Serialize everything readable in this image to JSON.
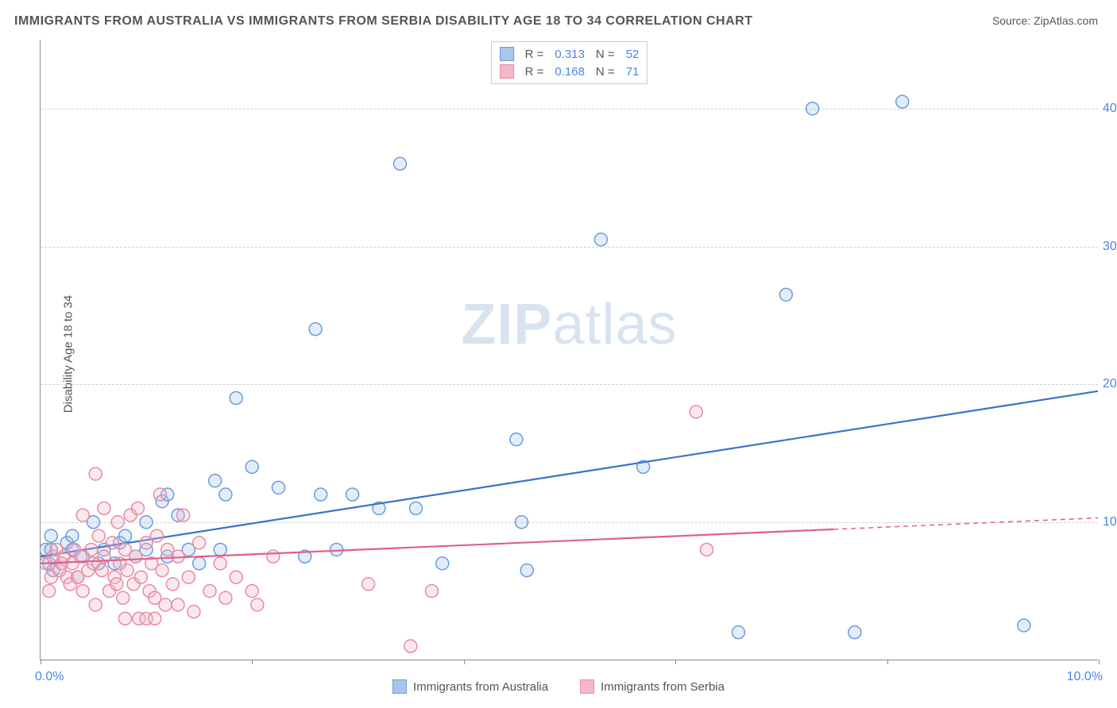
{
  "title": "IMMIGRANTS FROM AUSTRALIA VS IMMIGRANTS FROM SERBIA DISABILITY AGE 18 TO 34 CORRELATION CHART",
  "source_label": "Source: ",
  "source_name": "ZipAtlas.com",
  "y_axis_label": "Disability Age 18 to 34",
  "watermark_bold": "ZIP",
  "watermark_light": "atlas",
  "chart": {
    "type": "scatter",
    "xlim": [
      0.0,
      10.0
    ],
    "ylim": [
      0.0,
      45.0
    ],
    "x_ticks": [
      0.0,
      2.0,
      4.0,
      6.0,
      8.0,
      10.0
    ],
    "x_tick_labels_shown": {
      "0.0": "0.0%",
      "10.0": "10.0%"
    },
    "y_ticks": [
      10.0,
      20.0,
      30.0,
      40.0
    ],
    "y_tick_labels": {
      "10.0": "10.0%",
      "20.0": "20.0%",
      "30.0": "30.0%",
      "40.0": "40.0%"
    },
    "background_color": "#ffffff",
    "grid_color": "#d0d0d0",
    "axis_color": "#888888",
    "marker_radius": 8,
    "marker_fill_opacity": 0.32,
    "series": [
      {
        "name": "Immigrants from Australia",
        "legend_label": "Immigrants from Australia",
        "color_fill": "#a8c5ec",
        "color_stroke": "#6a9cdb",
        "trend_color": "#3b72cc",
        "r_value": "0.313",
        "n_value": "52",
        "trend": {
          "x1": 0.0,
          "y1": 7.5,
          "x2": 10.0,
          "y2": 19.5
        },
        "trend_dash_from_x": null,
        "points": [
          {
            "x": 0.05,
            "y": 8.0
          },
          {
            "x": 0.08,
            "y": 7.0
          },
          {
            "x": 0.1,
            "y": 8.0
          },
          {
            "x": 0.1,
            "y": 9.0
          },
          {
            "x": 0.12,
            "y": 6.5
          },
          {
            "x": 0.2,
            "y": 7.0
          },
          {
            "x": 0.25,
            "y": 8.5
          },
          {
            "x": 0.3,
            "y": 8.0
          },
          {
            "x": 0.3,
            "y": 9.0
          },
          {
            "x": 0.35,
            "y": 6.0
          },
          {
            "x": 0.4,
            "y": 7.5
          },
          {
            "x": 0.5,
            "y": 10.0
          },
          {
            "x": 0.55,
            "y": 7.0
          },
          {
            "x": 0.6,
            "y": 8.0
          },
          {
            "x": 0.7,
            "y": 7.0
          },
          {
            "x": 0.75,
            "y": 8.5
          },
          {
            "x": 0.8,
            "y": 9.0
          },
          {
            "x": 0.9,
            "y": 7.5
          },
          {
            "x": 1.0,
            "y": 10.0
          },
          {
            "x": 1.0,
            "y": 8.0
          },
          {
            "x": 1.15,
            "y": 11.5
          },
          {
            "x": 1.2,
            "y": 7.5
          },
          {
            "x": 1.2,
            "y": 12.0
          },
          {
            "x": 1.3,
            "y": 10.5
          },
          {
            "x": 1.4,
            "y": 8.0
          },
          {
            "x": 1.5,
            "y": 7.0
          },
          {
            "x": 1.65,
            "y": 13.0
          },
          {
            "x": 1.7,
            "y": 8.0
          },
          {
            "x": 1.75,
            "y": 12.0
          },
          {
            "x": 1.85,
            "y": 19.0
          },
          {
            "x": 2.0,
            "y": 14.0
          },
          {
            "x": 2.25,
            "y": 12.5
          },
          {
            "x": 2.5,
            "y": 7.5
          },
          {
            "x": 2.6,
            "y": 24.0
          },
          {
            "x": 2.65,
            "y": 12.0
          },
          {
            "x": 2.8,
            "y": 8.0
          },
          {
            "x": 2.95,
            "y": 12.0
          },
          {
            "x": 3.2,
            "y": 11.0
          },
          {
            "x": 3.4,
            "y": 36.0
          },
          {
            "x": 3.55,
            "y": 11.0
          },
          {
            "x": 3.8,
            "y": 7.0
          },
          {
            "x": 4.5,
            "y": 16.0
          },
          {
            "x": 4.55,
            "y": 10.0
          },
          {
            "x": 4.6,
            "y": 6.5
          },
          {
            "x": 5.3,
            "y": 30.5
          },
          {
            "x": 5.7,
            "y": 14.0
          },
          {
            "x": 6.6,
            "y": 2.0
          },
          {
            "x": 7.05,
            "y": 26.5
          },
          {
            "x": 7.3,
            "y": 40.0
          },
          {
            "x": 7.7,
            "y": 2.0
          },
          {
            "x": 8.15,
            "y": 40.5
          },
          {
            "x": 9.3,
            "y": 2.5
          }
        ]
      },
      {
        "name": "Immigrants from Serbia",
        "legend_label": "Immigrants from Serbia",
        "color_fill": "#f3b9c8",
        "color_stroke": "#e88aa3",
        "trend_color": "#e06088",
        "r_value": "0.168",
        "n_value": "71",
        "trend": {
          "x1": 0.0,
          "y1": 7.0,
          "x2": 10.0,
          "y2": 10.3
        },
        "trend_dash_from_x": 7.5,
        "points": [
          {
            "x": 0.05,
            "y": 7.0
          },
          {
            "x": 0.08,
            "y": 5.0
          },
          {
            "x": 0.1,
            "y": 6.0
          },
          {
            "x": 0.12,
            "y": 7.5
          },
          {
            "x": 0.15,
            "y": 8.0
          },
          {
            "x": 0.18,
            "y": 6.5
          },
          {
            "x": 0.2,
            "y": 7.0
          },
          {
            "x": 0.22,
            "y": 7.5
          },
          {
            "x": 0.25,
            "y": 6.0
          },
          {
            "x": 0.28,
            "y": 5.5
          },
          {
            "x": 0.3,
            "y": 7.0
          },
          {
            "x": 0.32,
            "y": 8.0
          },
          {
            "x": 0.35,
            "y": 6.0
          },
          {
            "x": 0.38,
            "y": 7.5
          },
          {
            "x": 0.4,
            "y": 5.0
          },
          {
            "x": 0.4,
            "y": 10.5
          },
          {
            "x": 0.45,
            "y": 6.5
          },
          {
            "x": 0.48,
            "y": 8.0
          },
          {
            "x": 0.5,
            "y": 7.0
          },
          {
            "x": 0.52,
            "y": 4.0
          },
          {
            "x": 0.52,
            "y": 13.5
          },
          {
            "x": 0.55,
            "y": 9.0
          },
          {
            "x": 0.58,
            "y": 6.5
          },
          {
            "x": 0.6,
            "y": 7.5
          },
          {
            "x": 0.6,
            "y": 11.0
          },
          {
            "x": 0.65,
            "y": 5.0
          },
          {
            "x": 0.68,
            "y": 8.5
          },
          {
            "x": 0.7,
            "y": 6.0
          },
          {
            "x": 0.72,
            "y": 5.5
          },
          {
            "x": 0.73,
            "y": 10.0
          },
          {
            "x": 0.75,
            "y": 7.0
          },
          {
            "x": 0.78,
            "y": 4.5
          },
          {
            "x": 0.8,
            "y": 8.0
          },
          {
            "x": 0.8,
            "y": 3.0
          },
          {
            "x": 0.82,
            "y": 6.5
          },
          {
            "x": 0.85,
            "y": 10.5
          },
          {
            "x": 0.88,
            "y": 5.5
          },
          {
            "x": 0.9,
            "y": 7.5
          },
          {
            "x": 0.92,
            "y": 11.0
          },
          {
            "x": 0.93,
            "y": 3.0
          },
          {
            "x": 0.95,
            "y": 6.0
          },
          {
            "x": 1.0,
            "y": 8.5
          },
          {
            "x": 1.0,
            "y": 3.0
          },
          {
            "x": 1.03,
            "y": 5.0
          },
          {
            "x": 1.05,
            "y": 7.0
          },
          {
            "x": 1.08,
            "y": 4.5
          },
          {
            "x": 1.08,
            "y": 3.0
          },
          {
            "x": 1.1,
            "y": 9.0
          },
          {
            "x": 1.13,
            "y": 12.0
          },
          {
            "x": 1.15,
            "y": 6.5
          },
          {
            "x": 1.18,
            "y": 4.0
          },
          {
            "x": 1.2,
            "y": 8.0
          },
          {
            "x": 1.25,
            "y": 5.5
          },
          {
            "x": 1.3,
            "y": 7.5
          },
          {
            "x": 1.3,
            "y": 4.0
          },
          {
            "x": 1.35,
            "y": 10.5
          },
          {
            "x": 1.4,
            "y": 6.0
          },
          {
            "x": 1.45,
            "y": 3.5
          },
          {
            "x": 1.5,
            "y": 8.5
          },
          {
            "x": 1.6,
            "y": 5.0
          },
          {
            "x": 1.7,
            "y": 7.0
          },
          {
            "x": 1.75,
            "y": 4.5
          },
          {
            "x": 1.85,
            "y": 6.0
          },
          {
            "x": 2.0,
            "y": 5.0
          },
          {
            "x": 2.05,
            "y": 4.0
          },
          {
            "x": 2.2,
            "y": 7.5
          },
          {
            "x": 3.1,
            "y": 5.5
          },
          {
            "x": 3.5,
            "y": 1.0
          },
          {
            "x": 3.7,
            "y": 5.0
          },
          {
            "x": 6.2,
            "y": 18.0
          },
          {
            "x": 6.3,
            "y": 8.0
          }
        ]
      }
    ],
    "legend_bottom": [
      {
        "series": 0
      },
      {
        "series": 1
      }
    ],
    "stats_box": {
      "r_label": "R =",
      "n_label": "N ="
    }
  }
}
